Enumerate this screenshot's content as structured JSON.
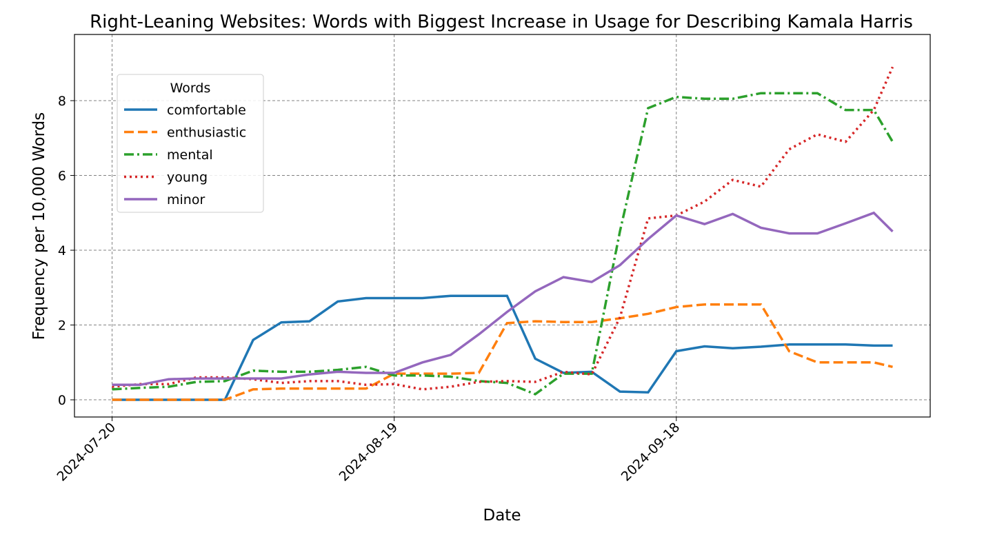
{
  "chart_data": {
    "type": "line",
    "title": "Right-Leaning Websites: Words with Biggest Increase in Usage for Describing Kamala Harris",
    "x_label": "Date",
    "y_label": "Frequency per 10,000 Words",
    "x": [
      "2024-07-20",
      "2024-07-23",
      "2024-07-26",
      "2024-07-29",
      "2024-08-01",
      "2024-08-04",
      "2024-08-07",
      "2024-08-10",
      "2024-08-13",
      "2024-08-16",
      "2024-08-19",
      "2024-08-22",
      "2024-08-25",
      "2024-08-28",
      "2024-08-31",
      "2024-09-03",
      "2024-09-06",
      "2024-09-09",
      "2024-09-12",
      "2024-09-15",
      "2024-09-18",
      "2024-09-21",
      "2024-09-24",
      "2024-09-27",
      "2024-09-30",
      "2024-10-03",
      "2024-10-06",
      "2024-10-09",
      "2024-10-11"
    ],
    "series": [
      {
        "name": "comfortable",
        "color": "#1f77b4",
        "style": "solid",
        "values": [
          0,
          0,
          0,
          0,
          0,
          1.6,
          2.07,
          2.1,
          2.63,
          2.72,
          2.72,
          2.72,
          2.78,
          2.78,
          2.78,
          1.1,
          0.72,
          0.75,
          0.22,
          0.2,
          1.3,
          1.43,
          1.38,
          1.42,
          1.48,
          1.48,
          1.48,
          1.45,
          1.45
        ]
      },
      {
        "name": "enthusiastic",
        "color": "#ff7f0e",
        "style": "dashed",
        "values": [
          0,
          0,
          0,
          0,
          0,
          0.28,
          0.3,
          0.3,
          0.3,
          0.3,
          0.7,
          0.7,
          0.7,
          0.72,
          2.05,
          2.1,
          2.08,
          2.08,
          2.18,
          2.3,
          2.48,
          2.55,
          2.55,
          2.55,
          1.3,
          1.0,
          1.0,
          1.0,
          0.88
        ]
      },
      {
        "name": "mental",
        "color": "#2ca02c",
        "style": "dashdot",
        "values": [
          0.28,
          0.32,
          0.35,
          0.48,
          0.5,
          0.78,
          0.75,
          0.75,
          0.8,
          0.88,
          0.65,
          0.65,
          0.62,
          0.5,
          0.45,
          0.15,
          0.7,
          0.7,
          4.5,
          7.8,
          8.1,
          8.05,
          8.05,
          8.2,
          8.2,
          8.2,
          7.75,
          7.75,
          6.9
        ]
      },
      {
        "name": "young",
        "color": "#d62728",
        "style": "dotted",
        "values": [
          0.35,
          0.42,
          0.42,
          0.6,
          0.6,
          0.55,
          0.45,
          0.5,
          0.5,
          0.4,
          0.42,
          0.28,
          0.35,
          0.48,
          0.5,
          0.48,
          0.75,
          0.68,
          2.2,
          4.85,
          4.93,
          5.3,
          5.88,
          5.7,
          6.7,
          7.1,
          6.9,
          7.75,
          8.9
        ]
      },
      {
        "name": "minor",
        "color": "#9467bd",
        "style": "solid",
        "values": [
          0.4,
          0.4,
          0.55,
          0.57,
          0.57,
          0.57,
          0.57,
          0.68,
          0.75,
          0.72,
          0.72,
          1.0,
          1.2,
          1.75,
          2.35,
          2.9,
          3.28,
          3.15,
          3.6,
          4.3,
          4.93,
          4.7,
          4.97,
          4.6,
          4.45,
          4.45,
          4.72,
          5.0,
          4.5
        ]
      }
    ],
    "legend_title": "Words",
    "legend": "upper left",
    "xlim": [
      "2024-07-16",
      "2024-10-15"
    ],
    "xticks": [
      "2024-07-20",
      "2024-08-19",
      "2024-09-18"
    ],
    "ylim": [
      -0.46,
      9.77
    ],
    "yticks": [
      0,
      2,
      4,
      6,
      8
    ],
    "grid": true
  }
}
